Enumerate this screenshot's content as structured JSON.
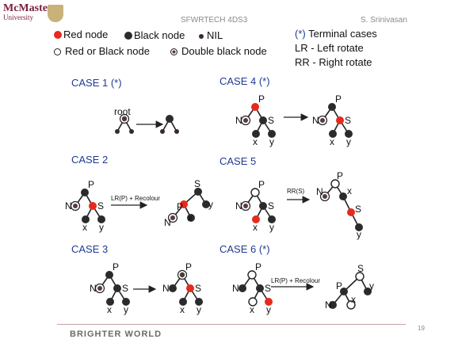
{
  "header": {
    "logo_name": "McMaster",
    "logo_sub": "University",
    "course": "SFWRTECH 4DS3",
    "author": "S. Srinivasan"
  },
  "legend": {
    "red_node": "Red node",
    "black_node": "Black node",
    "nil": "NIL",
    "red_or_black": "Red or Black node",
    "double_black": "Double black node",
    "terminal": "(*) Terminal cases",
    "lr": "LR - Left rotate",
    "rr": "RR - Right rotate"
  },
  "cases": {
    "c1": "CASE 1  (*)",
    "c2": "CASE 2",
    "c3": "CASE 3",
    "c4": "CASE 4 (*)",
    "c5": "CASE 5",
    "c6": "CASE 6 (*)"
  },
  "labels": {
    "root": "root",
    "P": "P",
    "N": "N",
    "S": "S",
    "x": "x",
    "y": "y",
    "lr_recolour": "LR(P) + Recolour",
    "rr_s": "RR(S)"
  },
  "colors": {
    "red": "#e8291c",
    "black": "#2b2b2b",
    "nil": "#3a2a2a",
    "blue": "#1f3a93"
  },
  "footer": {
    "brand": "BRIGHTER WORLD",
    "page": "19"
  }
}
